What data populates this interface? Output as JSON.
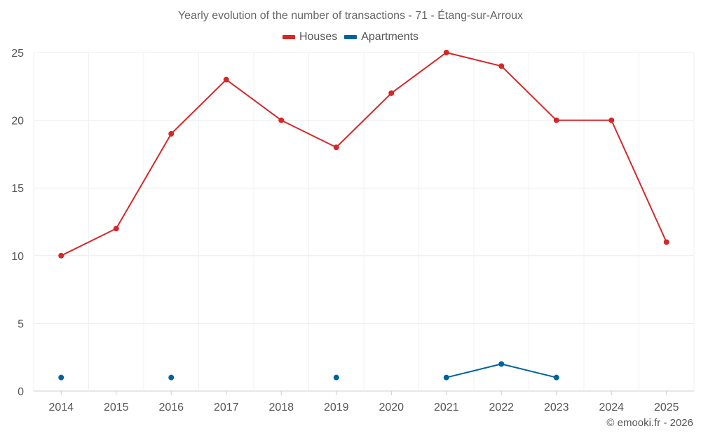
{
  "chart_data": {
    "type": "line",
    "title": "Yearly evolution of the number of transactions - 71 - Étang-sur-Arroux",
    "categories": [
      "2014",
      "2015",
      "2016",
      "2017",
      "2018",
      "2019",
      "2020",
      "2021",
      "2022",
      "2023",
      "2024",
      "2025"
    ],
    "series": [
      {
        "name": "Houses",
        "color": "#d62728",
        "values": [
          10,
          12,
          19,
          23,
          20,
          18,
          22,
          25,
          24,
          20,
          20,
          11
        ]
      },
      {
        "name": "Apartments",
        "color": "#00629b",
        "values": [
          1,
          null,
          1,
          null,
          null,
          1,
          null,
          1,
          2,
          1,
          null,
          null
        ]
      }
    ],
    "ylim": [
      0,
      25
    ],
    "yticks": [
      0,
      5,
      10,
      15,
      20,
      25
    ],
    "xlabel": "",
    "ylabel": "",
    "grid": true,
    "legend_position": "top-center"
  },
  "footer": {
    "credit": "© emooki.fr - 2026"
  }
}
